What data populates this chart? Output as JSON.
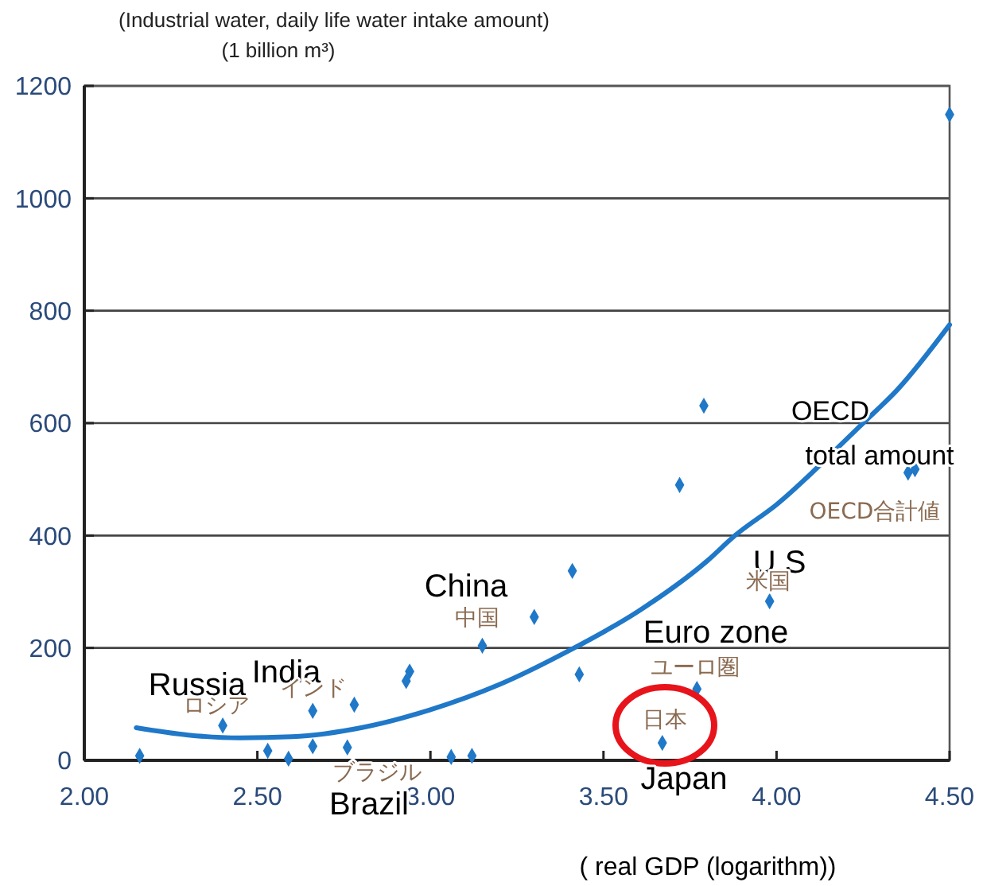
{
  "chart_data": {
    "type": "scatter",
    "ylabel": "(Industrial water, daily life water intake amount)\n(1 billion m³)",
    "xlabel": "( real GDP (logarithm))",
    "xlim": [
      2,
      4.5
    ],
    "ylim": [
      0,
      1200
    ],
    "xticks": [
      {
        "value": 2,
        "label": "2.00"
      },
      {
        "value": 2.5,
        "label": "2.50"
      },
      {
        "value": 3,
        "label": "3.00"
      },
      {
        "value": 3.5,
        "label": "3.50"
      },
      {
        "value": 4,
        "label": "4.00"
      },
      {
        "value": 4.5,
        "label": "4.50"
      }
    ],
    "yticks": [
      0,
      200,
      400,
      600,
      800,
      1000,
      1200
    ],
    "grid": "y",
    "series": [
      {
        "color": "#1f78c8",
        "marker": "diamond",
        "x": [
          2.16,
          2.4,
          2.53,
          2.59,
          2.66,
          2.66,
          2.76,
          2.78,
          2.93,
          2.94,
          3.06,
          3.12,
          3.15,
          3.3,
          3.41,
          3.43,
          3.67,
          3.72,
          3.77,
          3.79,
          3.98,
          4.38,
          4.4,
          4.5
        ],
        "values": [
          8,
          62,
          17,
          3,
          25,
          88,
          23,
          99,
          141,
          158,
          6,
          8,
          204,
          255,
          337,
          153,
          31,
          490,
          127,
          631,
          283,
          512,
          518,
          1149
        ]
      },
      {
        "type": "line",
        "color": "#1f78c8",
        "marker": "none",
        "line_style": "solid",
        "x": [
          2.15,
          2.3,
          2.45,
          2.6,
          2.8,
          3.0,
          3.2,
          3.4,
          3.6,
          3.8,
          3.88,
          4.0,
          4.2,
          4.25,
          4.35,
          4.5
        ],
        "values": [
          58,
          45,
          40,
          42,
          58,
          90,
          135,
          195,
          265,
          355,
          400,
          455,
          570,
          600,
          660,
          775
        ]
      }
    ],
    "annotations": [
      "Russia",
      "ロシア",
      "India",
      "インド",
      "Brazil",
      "ブラジル",
      "China",
      "中国",
      "U.S",
      "米国",
      "Euro zone",
      "ユーロ圏",
      "日本",
      "Japan",
      "OECD",
      "total amount",
      "OECD合計値"
    ]
  }
}
